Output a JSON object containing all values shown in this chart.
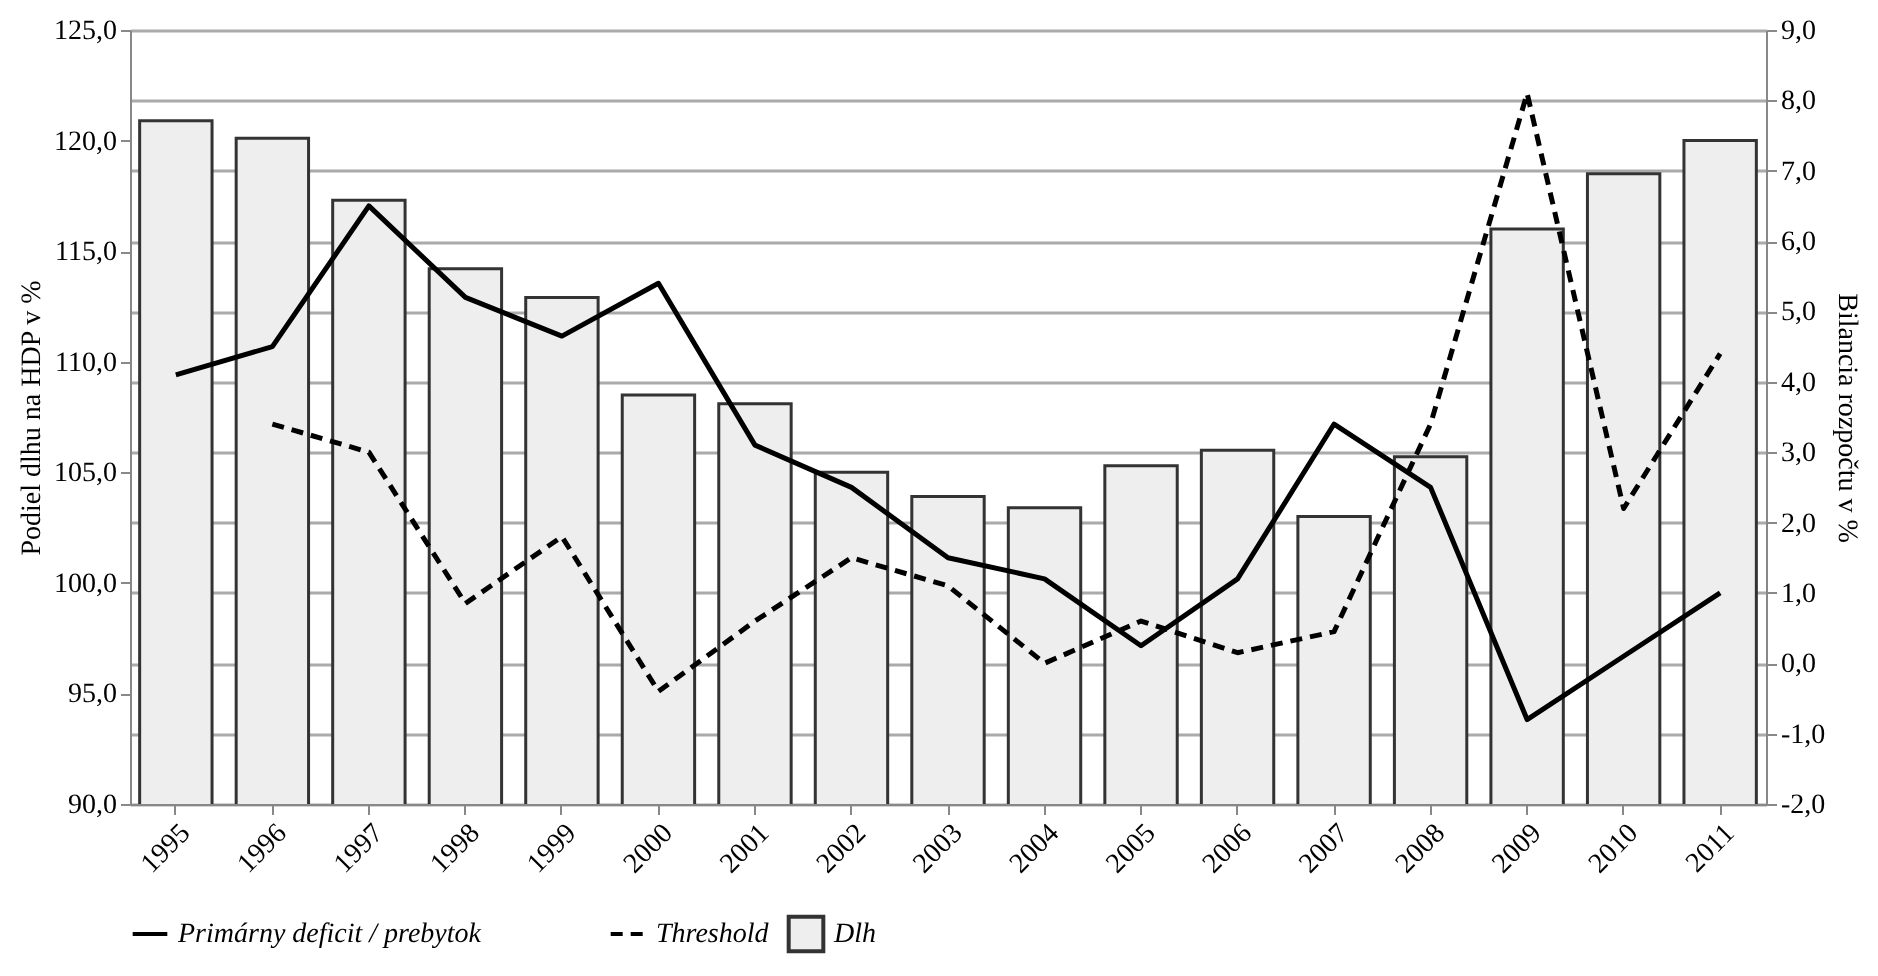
{
  "chart_data": {
    "type": "bar",
    "categories": [
      "1995",
      "1996",
      "1997",
      "1998",
      "1999",
      "2000",
      "2001",
      "2002",
      "2003",
      "2004",
      "2005",
      "2006",
      "2007",
      "2008",
      "2009",
      "2010",
      "2011"
    ],
    "ylabel": "Podiel dlhu na HDP v %",
    "y2label": "Bilancia rozpočtu v %",
    "series": [
      {
        "name": "Dlh",
        "color": "#eeeeee",
        "values": [
          120.9,
          120.1,
          117.3,
          114.2,
          112.9,
          108.5,
          108.1,
          105.0,
          103.9,
          103.4,
          105.3,
          106.0,
          103.0,
          105.7,
          116.0,
          118.5,
          120.0
        ]
      },
      {
        "name": "Primárny deficit / prebytok",
        "type": "line",
        "axis": "y2",
        "line_style": "solid",
        "color": "#000000",
        "values": [
          4.1,
          4.5,
          6.5,
          5.2,
          4.65,
          5.4,
          3.1,
          2.5,
          1.5,
          1.2,
          0.25,
          1.2,
          3.4,
          2.5,
          -0.8,
          0.1,
          1.0
        ]
      },
      {
        "name": "Threshold",
        "type": "line",
        "axis": "y2",
        "line_style": "dashed",
        "color": "#000000",
        "values": [
          null,
          3.4,
          3.0,
          0.85,
          1.8,
          -0.4,
          0.6,
          1.5,
          1.1,
          0.0,
          0.6,
          0.15,
          0.45,
          3.4,
          8.1,
          2.2,
          4.4
        ]
      }
    ],
    "ylim": [
      90,
      125
    ],
    "yticks": [
      {
        "value": 90,
        "label": "90,0"
      },
      {
        "value": 95,
        "label": "95,0"
      },
      {
        "value": 100,
        "label": "100,0"
      },
      {
        "value": 105,
        "label": "105,0"
      },
      {
        "value": 110,
        "label": "110,0"
      },
      {
        "value": 115,
        "label": "115,0"
      },
      {
        "value": 120,
        "label": "120,0"
      },
      {
        "value": 125,
        "label": "125,0"
      }
    ],
    "y2lim": [
      -2,
      9
    ],
    "y2ticks": [
      {
        "value": -2,
        "label": "-2,0"
      },
      {
        "value": -1,
        "label": "-1,0"
      },
      {
        "value": 0,
        "label": "0,0"
      },
      {
        "value": 1,
        "label": "1,0"
      },
      {
        "value": 2,
        "label": "2,0"
      },
      {
        "value": 3,
        "label": "3,0"
      },
      {
        "value": 4,
        "label": "4,0"
      },
      {
        "value": 5,
        "label": "5,0"
      },
      {
        "value": 6,
        "label": "6,0"
      },
      {
        "value": 7,
        "label": "7,0"
      },
      {
        "value": 8,
        "label": "8,0"
      },
      {
        "value": 9,
        "label": "9,0"
      }
    ],
    "grid": true,
    "legend": "bottom"
  }
}
